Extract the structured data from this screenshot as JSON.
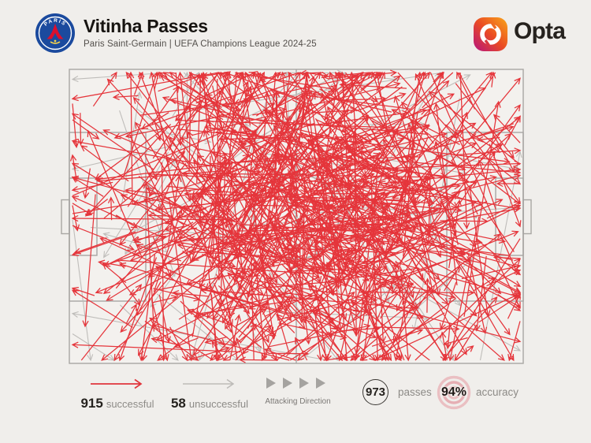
{
  "header": {
    "title": "Vitinha Passes",
    "subtitle": "Paris Saint-Germain | UEFA Champions League 2024-25",
    "club_badge": "Paris Saint-Germain crest",
    "badge_text_top": "PARIS",
    "brand_wordmark": "Opta"
  },
  "legend": {
    "successful": {
      "value": "915",
      "label": "successful",
      "color": "#e0363c"
    },
    "unsuccessful": {
      "value": "58",
      "label": "unsuccessful",
      "color": "#bdbbb8"
    },
    "attacking_direction_label": "Attacking Direction",
    "passes": {
      "value": "973",
      "label": "passes"
    },
    "accuracy": {
      "value": "94%",
      "label": "accuracy"
    }
  },
  "chart_data": {
    "type": "scatter",
    "subtype": "football-pass-map",
    "title": "Vitinha Passes",
    "subtitle": "Paris Saint-Germain | UEFA Champions League 2024-25",
    "stats": {
      "successful_passes": 915,
      "unsuccessful_passes": 58,
      "total_passes": 973,
      "accuracy_pct": 94
    },
    "pitch": {
      "orientation": "horizontal",
      "attacking_direction": "left-to-right",
      "line_color": "#a8a6a3",
      "fill_color": "#f3f1ee"
    },
    "render": {
      "seed": 20242511,
      "successful": {
        "count": 915,
        "color": "#e5353b",
        "stroke_width": 1.25,
        "head": 8
      },
      "unsuccessful": {
        "count": 58,
        "color": "#bfbdba",
        "stroke_width": 1.1,
        "head": 8
      },
      "note": "individual pass coordinates not labelled in source; arrows are a seeded distribution dense in central midfield, covering pitch, sparse in both penalty boxes"
    }
  }
}
